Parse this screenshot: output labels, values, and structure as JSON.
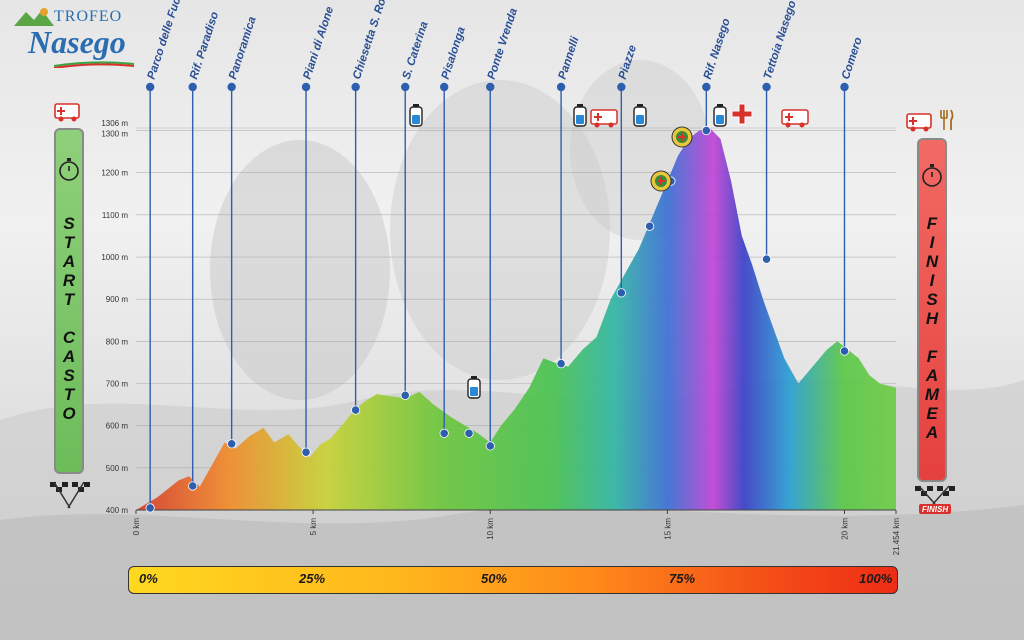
{
  "logo": {
    "top": "TROFEO",
    "main": "Nasego"
  },
  "start_label": "START CASTO",
  "finish_label": "FINISH FAMEA",
  "finish_flag_text": "FINISH",
  "chart_data": {
    "type": "area",
    "ylabel": "",
    "xlabel": "",
    "ylim": [
      400,
      1306
    ],
    "yticks": [
      400,
      500,
      600,
      700,
      800,
      900,
      1000,
      1100,
      1200,
      1300,
      1306
    ],
    "ytick_labels": [
      "400 m",
      "500 m",
      "600 m",
      "700 m",
      "800 m",
      "900 m",
      "1000 m",
      "1100 m",
      "1200 m",
      "1300 m",
      "1306 m"
    ],
    "xlim": [
      0,
      21.454
    ],
    "xticks": [
      0,
      5,
      10,
      15,
      20,
      21.454
    ],
    "xtick_labels": [
      "0 km",
      "5 km",
      "10 km",
      "15 km",
      "20 km",
      "21.454 km"
    ],
    "profile": {
      "x": [
        0,
        0.6,
        1.2,
        1.5,
        1.8,
        2.1,
        2.5,
        2.8,
        3.2,
        3.6,
        3.9,
        4.3,
        4.6,
        4.9,
        5.2,
        5.5,
        5.9,
        6.2,
        6.5,
        6.8,
        7.2,
        7.6,
        8.0,
        8.4,
        8.9,
        9.3,
        9.6,
        10.0,
        10.3,
        10.7,
        11.1,
        11.5,
        11.8,
        12.2,
        12.6,
        13.0,
        13.4,
        13.8,
        14.2,
        14.6,
        15.0,
        15.3,
        15.6,
        15.9,
        16.2,
        16.5,
        16.8,
        17.1,
        17.4,
        17.7,
        18.0,
        18.3,
        18.7,
        19.1,
        19.5,
        19.8,
        20.1,
        20.4,
        20.7,
        21.0,
        21.454
      ],
      "y": [
        400,
        430,
        470,
        480,
        455,
        500,
        560,
        545,
        575,
        595,
        560,
        580,
        550,
        525,
        555,
        570,
        610,
        640,
        660,
        675,
        670,
        665,
        680,
        650,
        620,
        600,
        585,
        560,
        600,
        640,
        690,
        760,
        750,
        740,
        780,
        810,
        900,
        960,
        1020,
        1100,
        1180,
        1240,
        1280,
        1300,
        1306,
        1280,
        1180,
        1050,
        980,
        900,
        830,
        760,
        700,
        740,
        780,
        800,
        780,
        760,
        720,
        700,
        690
      ]
    },
    "waypoints": [
      {
        "name": "Parco delle Fucine",
        "km": 0.4,
        "alt": 405
      },
      {
        "name": "Rif. Paradiso",
        "km": 1.6,
        "alt": 457
      },
      {
        "name": "Panoramica",
        "km": 2.7,
        "alt": 557
      },
      {
        "name": "Piani di Alone",
        "km": 4.8,
        "alt": 537
      },
      {
        "name": "Chiesetta S. Rocco",
        "km": 6.2,
        "alt": 637
      },
      {
        "name": "S. Caterina",
        "km": 7.6,
        "alt": 672
      },
      {
        "name": "Pisalonga",
        "km": 8.7,
        "alt": 582
      },
      {
        "name": "Ponte Vrenda",
        "km": 10.0,
        "alt": 552
      },
      {
        "name": "Pannelli",
        "km": 12.0,
        "alt": 747
      },
      {
        "name": "Piazze",
        "km": 13.7,
        "alt": 915
      },
      {
        "name": "Rif. Nasego",
        "km": 16.1,
        "alt": 1300
      },
      {
        "name": "Tettoia Nasego",
        "km": 17.8,
        "alt": 995
      },
      {
        "name": "Comero",
        "km": 20.0,
        "alt": 777
      }
    ],
    "extra_points": [
      {
        "km": 9.4,
        "alt": 582
      },
      {
        "km": 14.5,
        "alt": 1073
      },
      {
        "km": 15.1,
        "alt": 1180
      }
    ],
    "progress_bar": [
      "0%",
      "25%",
      "50%",
      "75%",
      "100%"
    ]
  },
  "icons": {
    "water": "water-bottle-icon",
    "ambulance": "ambulance-icon",
    "first_aid": "red-cross-icon",
    "rescue": "rescue-badge-icon",
    "food": "fork-knife-icon",
    "stopwatch": "stopwatch-icon",
    "flag": "checkered-flag-icon"
  },
  "colors": {
    "line": "#2e5fae",
    "start": "#7cc667",
    "finish": "#ef5450",
    "bar_start": "#ffd820",
    "bar_end": "#ee2c16"
  }
}
